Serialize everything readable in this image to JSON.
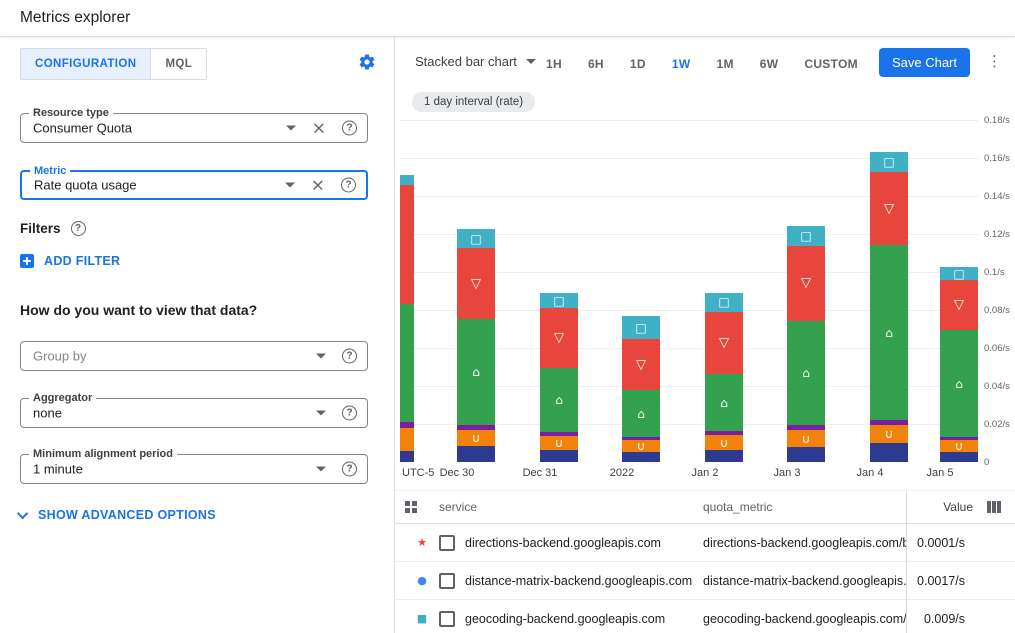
{
  "app": {
    "title": "Metrics explorer"
  },
  "icons": {
    "clear": "×",
    "help": "?",
    "kebab": "⋮"
  },
  "left_panel": {
    "tabs": [
      {
        "label": "CONFIGURATION"
      },
      {
        "label": "MQL"
      }
    ],
    "active_tab": "CONFIGURATION",
    "resource_type": {
      "label": "Resource type",
      "value": "Consumer Quota"
    },
    "metric": {
      "label": "Metric",
      "value": "Rate quota usage"
    },
    "filters_label": "Filters",
    "add_filter_label": "ADD FILTER",
    "view_data_question": "How do you want to view that data?",
    "group_by": {
      "placeholder": "Group by"
    },
    "aggregator": {
      "label": "Aggregator",
      "value": "none"
    },
    "min_alignment": {
      "label": "Minimum alignment period",
      "value": "1 minute"
    },
    "show_advanced_label": "SHOW ADVANCED OPTIONS"
  },
  "toolbar": {
    "chart_type_label": "Stacked bar chart",
    "time_ranges": [
      "1H",
      "6H",
      "1D",
      "1W",
      "1M",
      "6W",
      "CUSTOM"
    ],
    "active_range": "1W",
    "save_button": "Save Chart",
    "interval_chip": "1 day interval (rate)"
  },
  "chart_data": {
    "type": "bar",
    "stacked": true,
    "title": "",
    "xlabel": "",
    "ylabel": "",
    "unit": "/s",
    "ylim": [
      0,
      0.18
    ],
    "y_ticks": [
      "0.18/s",
      "0.16/s",
      "0.14/s",
      "0.12/s",
      "0.1/s",
      "0.08/s",
      "0.06/s",
      "0.04/s",
      "0.02/s",
      "0"
    ],
    "x_labels": [
      "UTC-5",
      "Dec 30",
      "Dec 31",
      "2022",
      "Jan 2",
      "Jan 3",
      "Jan 4",
      "Jan 5"
    ],
    "grid": true,
    "first_bar_clipped": true,
    "series": [
      {
        "name": "indigo",
        "color": "#2d3a8f",
        "marker": "",
        "values": [
          0.006,
          0.0084,
          0.0063,
          0.0053,
          0.0063,
          0.0079,
          0.01,
          0.0053
        ]
      },
      {
        "name": "orange",
        "color": "#f1820c",
        "marker": "∪",
        "values": [
          0.012,
          0.0084,
          0.0074,
          0.0063,
          0.0079,
          0.0089,
          0.0095,
          0.0063
        ]
      },
      {
        "name": "purple",
        "color": "#7b1fa2",
        "marker": "",
        "values": [
          0.003,
          0.0026,
          0.002,
          0.0015,
          0.002,
          0.0026,
          0.0026,
          0.0015
        ]
      },
      {
        "name": "green",
        "color": "#34a14f",
        "marker": "⌂",
        "values": [
          0.062,
          0.056,
          0.0337,
          0.0247,
          0.03,
          0.055,
          0.092,
          0.0563
        ]
      },
      {
        "name": "red",
        "color": "#e8463c",
        "marker": "▽",
        "values": [
          0.063,
          0.037,
          0.0316,
          0.027,
          0.033,
          0.0395,
          0.0384,
          0.0263
        ]
      },
      {
        "name": "teal",
        "color": "#3fb0c5",
        "marker": "□",
        "values": [
          0.005,
          0.0105,
          0.008,
          0.012,
          0.01,
          0.0105,
          0.0105,
          0.0068
        ]
      }
    ]
  },
  "table": {
    "columns": [
      "service",
      "quota_metric",
      "Value"
    ],
    "rows": [
      {
        "marker_glyph": "★",
        "marker_color": "#e8453c",
        "service": "directions-backend.googleapis.com",
        "quota_metric": "directions-backend.googleapis.com/billabl",
        "value": "0.0001/s"
      },
      {
        "marker_glyph": "●",
        "marker_color": "#4285f4",
        "service": "distance-matrix-backend.googleapis.com",
        "quota_metric": "distance-matrix-backend.googleapis.com/l",
        "value": "0.0017/s"
      },
      {
        "marker_glyph": "■",
        "marker_color": "#3fb0c5",
        "service": "geocoding-backend.googleapis.com",
        "quota_metric": "geocoding-backend.googleapis.com/billab",
        "value": "0.009/s"
      }
    ]
  }
}
